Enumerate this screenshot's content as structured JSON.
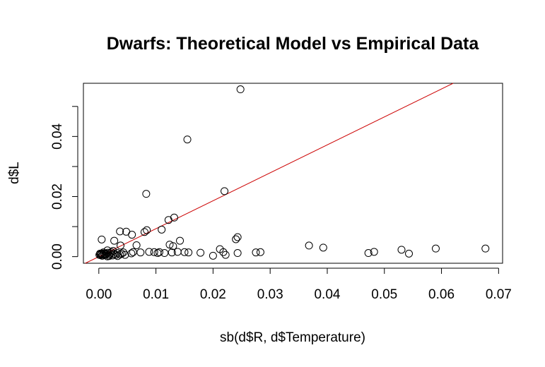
{
  "chart_data": {
    "type": "scatter",
    "title": "Dwarfs: Theoretical Model vs Empirical Data",
    "xlabel": "sb(d$R, d$Temperature)",
    "ylabel": "d$L",
    "xlim": [
      -0.0027,
      0.0707
    ],
    "ylim": [
      -0.0022,
      0.0577
    ],
    "x_ticks": [
      "0.00",
      "0.01",
      "0.02",
      "0.03",
      "0.04",
      "0.05",
      "0.06",
      "0.07"
    ],
    "y_ticks": [
      "0.00",
      "0.02",
      "0.04"
    ],
    "x_tick_values": [
      0,
      0.01,
      0.02,
      0.03,
      0.04,
      0.05,
      0.06,
      0.07
    ],
    "y_tick_values": [
      0,
      0.02,
      0.04
    ],
    "y_minor_tick_values": [
      0.01,
      0.03,
      0.05
    ],
    "grid": false,
    "point_color": "#000000",
    "line_color": "#cc0000",
    "reference_line": {
      "intercept": 0,
      "slope": 0.93
    },
    "points": [
      {
        "x": 0.0248,
        "y": 0.0557
      },
      {
        "x": 0.0155,
        "y": 0.039
      },
      {
        "x": 0.022,
        "y": 0.0218
      },
      {
        "x": 0.0083,
        "y": 0.0209
      },
      {
        "x": 0.0132,
        "y": 0.013
      },
      {
        "x": 0.0122,
        "y": 0.0122
      },
      {
        "x": 0.011,
        "y": 0.009
      },
      {
        "x": 0.0084,
        "y": 0.0088
      },
      {
        "x": 0.008,
        "y": 0.0082
      },
      {
        "x": 0.0037,
        "y": 0.0084
      },
      {
        "x": 0.0048,
        "y": 0.0083
      },
      {
        "x": 0.0058,
        "y": 0.0073
      },
      {
        "x": 0.0005,
        "y": 0.0057
      },
      {
        "x": 0.0027,
        "y": 0.0053
      },
      {
        "x": 0.0142,
        "y": 0.0053
      },
      {
        "x": 0.0243,
        "y": 0.0065
      },
      {
        "x": 0.024,
        "y": 0.0058
      },
      {
        "x": 0.0124,
        "y": 0.004
      },
      {
        "x": 0.013,
        "y": 0.0035
      },
      {
        "x": 0.0066,
        "y": 0.0038
      },
      {
        "x": 0.0038,
        "y": 0.0037
      },
      {
        "x": 0.0368,
        "y": 0.0037
      },
      {
        "x": 0.0393,
        "y": 0.003
      },
      {
        "x": 0.059,
        "y": 0.0027
      },
      {
        "x": 0.0677,
        "y": 0.0027
      },
      {
        "x": 0.053,
        "y": 0.0023
      },
      {
        "x": 0.0212,
        "y": 0.0025
      },
      {
        "x": 0.0218,
        "y": 0.0015
      },
      {
        "x": 0.0222,
        "y": 0.0006
      },
      {
        "x": 0.02,
        "y": 0.0003
      },
      {
        "x": 0.0243,
        "y": 0.0012
      },
      {
        "x": 0.0275,
        "y": 0.0014
      },
      {
        "x": 0.0283,
        "y": 0.0015
      },
      {
        "x": 0.0472,
        "y": 0.0012
      },
      {
        "x": 0.0482,
        "y": 0.0016
      },
      {
        "x": 0.0543,
        "y": 0.001
      },
      {
        "x": 0.0178,
        "y": 0.0013
      },
      {
        "x": 0.015,
        "y": 0.0015
      },
      {
        "x": 0.0157,
        "y": 0.0014
      },
      {
        "x": 0.0138,
        "y": 0.0016
      },
      {
        "x": 0.0128,
        "y": 0.0014
      },
      {
        "x": 0.0115,
        "y": 0.0012
      },
      {
        "x": 0.0106,
        "y": 0.0015
      },
      {
        "x": 0.0103,
        "y": 0.0012
      },
      {
        "x": 0.0097,
        "y": 0.0015
      },
      {
        "x": 0.0088,
        "y": 0.0016
      },
      {
        "x": 0.0073,
        "y": 0.0014
      },
      {
        "x": 0.006,
        "y": 0.0015
      },
      {
        "x": 0.0057,
        "y": 0.0011
      },
      {
        "x": 0.0043,
        "y": 0.0014
      },
      {
        "x": 0.004,
        "y": 0.001
      },
      {
        "x": 0.0037,
        "y": 0.0007
      },
      {
        "x": 0.0032,
        "y": 0.0012
      },
      {
        "x": 0.003,
        "y": 0.0006
      },
      {
        "x": 0.0027,
        "y": 0.0009
      },
      {
        "x": 0.0025,
        "y": 0.0019
      },
      {
        "x": 0.0022,
        "y": 0.0015
      },
      {
        "x": 0.002,
        "y": 0.0011
      },
      {
        "x": 0.0018,
        "y": 0.0006
      },
      {
        "x": 0.0016,
        "y": 0.0013
      },
      {
        "x": 0.0015,
        "y": 0.0021
      },
      {
        "x": 0.0013,
        "y": 0.0008
      },
      {
        "x": 0.0012,
        "y": 0.0011
      },
      {
        "x": 0.001,
        "y": 0.0005
      },
      {
        "x": 0.0009,
        "y": 0.001
      },
      {
        "x": 0.0008,
        "y": 0.0014
      },
      {
        "x": 0.0007,
        "y": 0.0007
      },
      {
        "x": 0.0006,
        "y": 0.0003
      },
      {
        "x": 0.0005,
        "y": 0.0011
      },
      {
        "x": 0.0004,
        "y": 0.0008
      },
      {
        "x": 0.0003,
        "y": 0.0005
      },
      {
        "x": 0.0002,
        "y": 0.001
      },
      {
        "x": 0.0001,
        "y": 0.0006
      },
      {
        "x": 0.0018,
        "y": 0.0002
      },
      {
        "x": 0.0024,
        "y": 0.0004
      },
      {
        "x": 0.0033,
        "y": 0.0002
      },
      {
        "x": 0.0046,
        "y": 0.0006
      },
      {
        "x": 0.0015,
        "y": 0.0001
      }
    ]
  }
}
